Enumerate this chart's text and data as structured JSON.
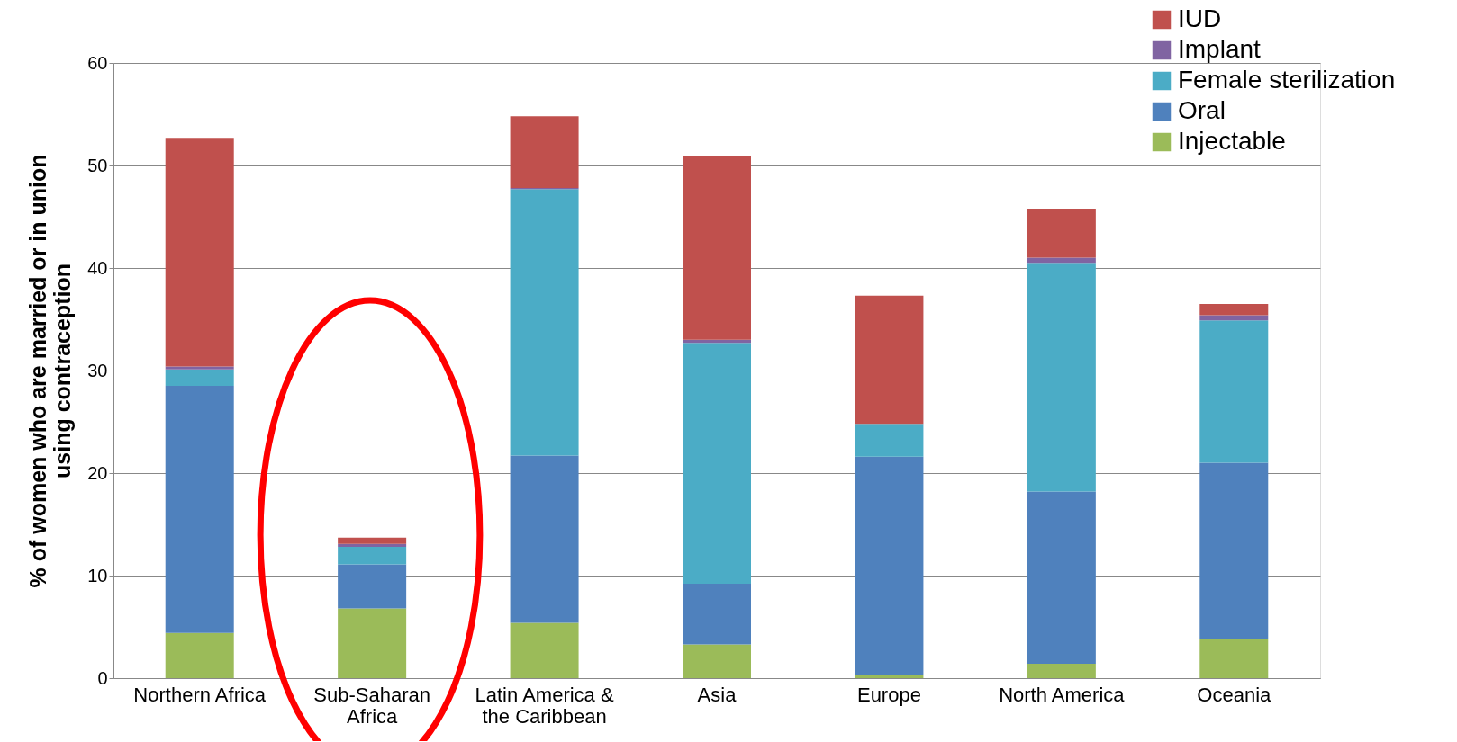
{
  "chart_data": {
    "type": "bar",
    "stacked": true,
    "ylabel": "% of women who are married or in union\nusing contraception",
    "categories": [
      "Northern Africa",
      "Sub-Saharan\nAfrica",
      "Latin America &\nthe Caribbean",
      "Asia",
      "Europe",
      "North America",
      "Oceania"
    ],
    "series": [
      {
        "name": "Injectable",
        "color": "#9bbb59",
        "values": [
          4.4,
          6.8,
          5.4,
          3.3,
          0.3,
          1.4,
          3.8
        ]
      },
      {
        "name": "Oral",
        "color": "#4f81bd",
        "values": [
          24.1,
          4.3,
          16.3,
          5.9,
          21.3,
          16.8,
          17.2
        ]
      },
      {
        "name": "Female sterilization",
        "color": "#4bacc6",
        "values": [
          1.6,
          1.7,
          26.0,
          23.5,
          3.2,
          22.3,
          13.9
        ]
      },
      {
        "name": "Implant",
        "color": "#8064a2",
        "values": [
          0.3,
          0.3,
          0.1,
          0.3,
          0.0,
          0.5,
          0.5
        ]
      },
      {
        "name": "IUD",
        "color": "#c0504d",
        "values": [
          22.3,
          0.6,
          7.0,
          17.9,
          12.5,
          4.8,
          1.1
        ]
      }
    ],
    "ylim": [
      0,
      60
    ],
    "yticks": [
      0,
      10,
      20,
      30,
      40,
      50,
      60
    ],
    "grid": "y",
    "legend": "top right"
  }
}
